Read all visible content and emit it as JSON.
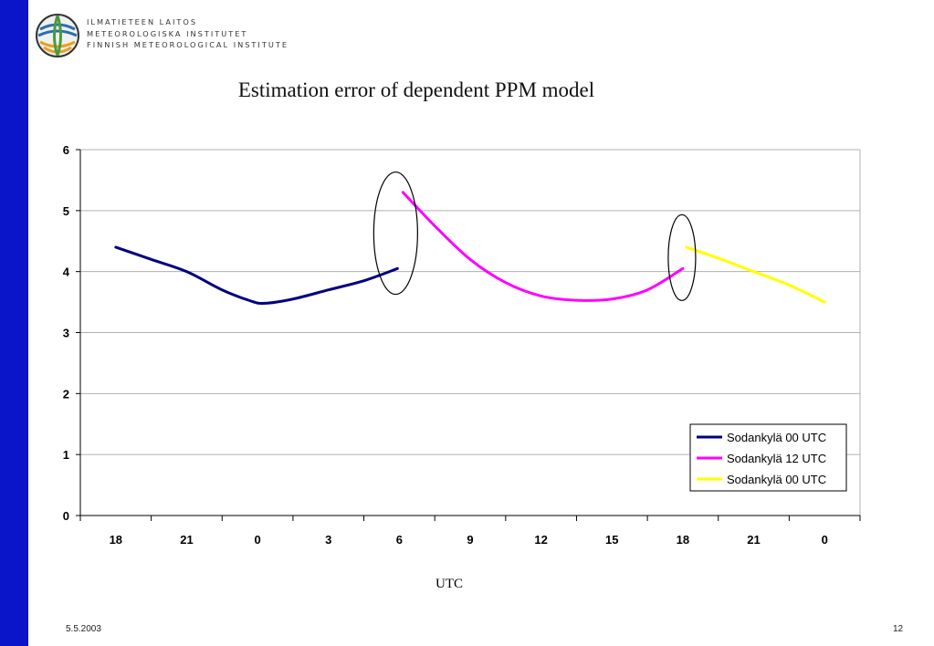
{
  "organization": {
    "lines": [
      "ILMATIETEEN LAITOS",
      "METEOROLOGISKA INSTITUTET",
      "FINNISH METEOROLOGICAL INSTITUTE"
    ]
  },
  "footer": {
    "date": "5.5.2003",
    "page": "12"
  },
  "colors": {
    "sidebar": "#0a14c8",
    "series1": "#000080",
    "series2": "#ff00ff",
    "series3": "#ffff00"
  },
  "chart_data": {
    "type": "line",
    "title": "Estimation error of dependent PPM model",
    "xlabel": "UTC",
    "ylabel": "",
    "categories": [
      "18",
      "21",
      "0",
      "3",
      "6",
      "9",
      "12",
      "15",
      "18",
      "21",
      "0"
    ],
    "ylim": [
      0,
      6
    ],
    "yticks": [
      "0",
      "1",
      "2",
      "3",
      "4",
      "5",
      "6"
    ],
    "grid": true,
    "legend": "bottom-right",
    "annotations": [
      "ellipse at 6 UTC transition",
      "ellipse at 18 UTC transition"
    ],
    "series": [
      {
        "name": "Sodankylä 00 UTC",
        "color": "#000080",
        "x": [
          0,
          0.5,
          1,
          1.5,
          1.9,
          2.1,
          2.5,
          3,
          3.5,
          4
        ],
        "values": [
          4.4,
          4.2,
          4.0,
          3.7,
          3.52,
          3.48,
          3.55,
          3.7,
          3.85,
          4.05
        ]
      },
      {
        "name": "Sodankylä 12 UTC",
        "color": "#ff00ff",
        "x": [
          4,
          4.5,
          5,
          5.5,
          6,
          6.5,
          7,
          7.5,
          8
        ],
        "values": [
          5.3,
          4.75,
          4.2,
          3.82,
          3.6,
          3.53,
          3.55,
          3.7,
          4.05
        ]
      },
      {
        "name": "Sodankylä 00 UTC",
        "color": "#ffff00",
        "x": [
          8,
          8.5,
          9,
          9.5,
          10
        ],
        "values": [
          4.4,
          4.22,
          4.0,
          3.78,
          3.5
        ]
      }
    ]
  }
}
